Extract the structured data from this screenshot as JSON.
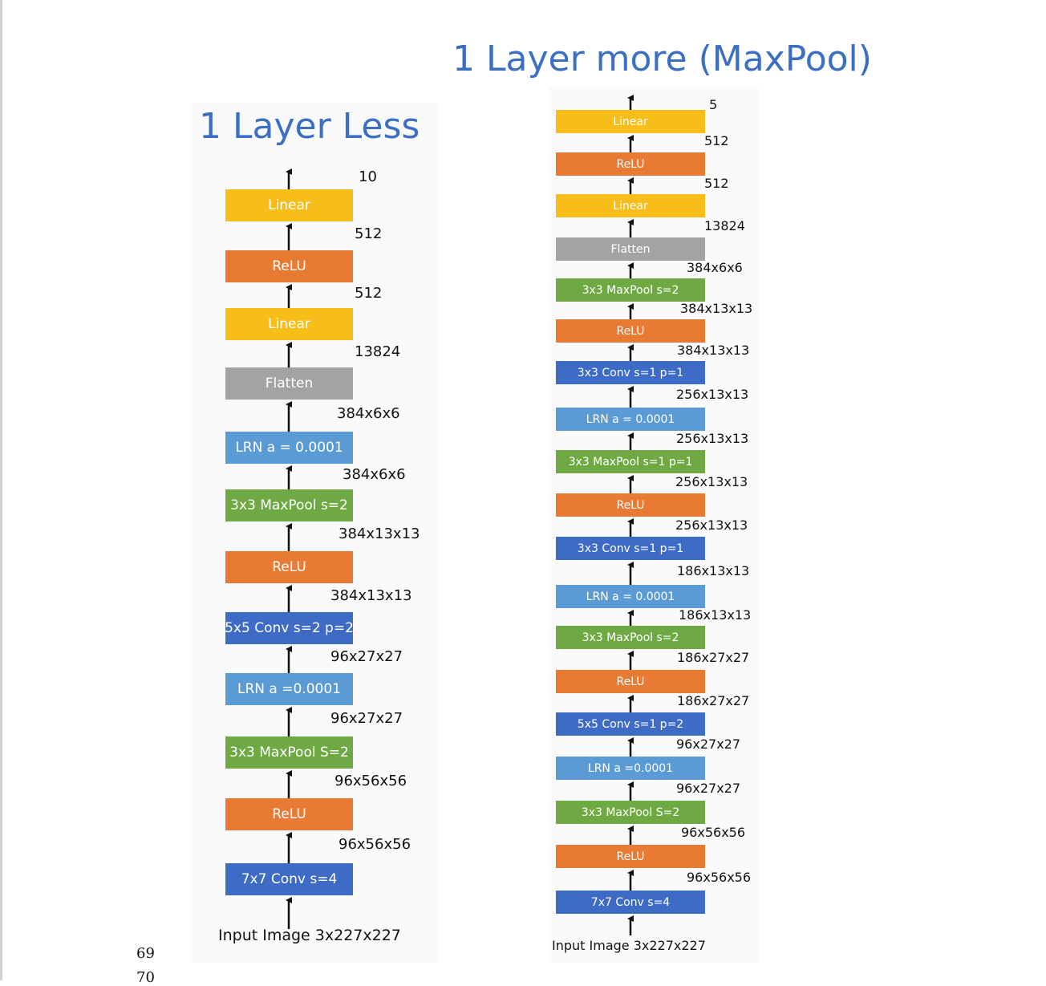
{
  "colors": {
    "title": "#3a6fc4",
    "linear": "#f7bd19",
    "relu": "#e87a33",
    "flatten": "#a3a3a3",
    "lrn": "#5b9bd5",
    "maxpool": "#6fa944",
    "conv": "#3d6bc6",
    "text": "#111111"
  },
  "left": {
    "title": "1 Layer Less",
    "output_label": "10",
    "input_label": "Input Image 3x227x227",
    "blocks": [
      {
        "label": "Linear",
        "kind": "linear",
        "out_label": "512"
      },
      {
        "label": "ReLU",
        "kind": "relu",
        "out_label": "512"
      },
      {
        "label": "Linear",
        "kind": "linear",
        "out_label": "13824"
      },
      {
        "label": "Flatten",
        "kind": "flatten",
        "out_label": "384x6x6"
      },
      {
        "label": "LRN a = 0.0001",
        "kind": "lrn",
        "out_label": "384x6x6"
      },
      {
        "label": "3x3 MaxPool s=2",
        "kind": "maxpool",
        "out_label": "384x13x13"
      },
      {
        "label": "ReLU",
        "kind": "relu",
        "out_label": "384x13x13"
      },
      {
        "label": "5x5 Conv s=2 p=2",
        "kind": "conv",
        "out_label": "96x27x27"
      },
      {
        "label": "LRN a =0.0001",
        "kind": "lrn",
        "out_label": "96x27x27"
      },
      {
        "label": "3x3 MaxPool S=2",
        "kind": "maxpool",
        "out_label": "96x56x56"
      },
      {
        "label": "ReLU",
        "kind": "relu",
        "out_label": "96x56x56"
      },
      {
        "label": "7x7 Conv s=4",
        "kind": "conv",
        "out_label": ""
      }
    ]
  },
  "right": {
    "title": "1 Layer more (MaxPool)",
    "output_label": "5",
    "input_label": "Input Image 3x227x227",
    "blocks": [
      {
        "label": "Linear",
        "kind": "linear",
        "out_label": "512"
      },
      {
        "label": "ReLU",
        "kind": "relu",
        "out_label": "512"
      },
      {
        "label": "Linear",
        "kind": "linear",
        "out_label": "13824"
      },
      {
        "label": "Flatten",
        "kind": "flatten",
        "out_label": "384x6x6"
      },
      {
        "label": "3x3 MaxPool s=2",
        "kind": "maxpool",
        "out_label": "384x13x13"
      },
      {
        "label": "ReLU",
        "kind": "relu",
        "out_label": "384x13x13"
      },
      {
        "label": "3x3 Conv s=1 p=1",
        "kind": "conv",
        "out_label": "256x13x13"
      },
      {
        "label": "LRN a = 0.0001",
        "kind": "lrn",
        "out_label": "256x13x13"
      },
      {
        "label": "3x3 MaxPool s=1 p=1",
        "kind": "maxpool",
        "out_label": "256x13x13"
      },
      {
        "label": "ReLU",
        "kind": "relu",
        "out_label": "256x13x13"
      },
      {
        "label": "3x3 Conv s=1 p=1",
        "kind": "conv",
        "out_label": "186x13x13"
      },
      {
        "label": "LRN a = 0.0001",
        "kind": "lrn",
        "out_label": "186x13x13"
      },
      {
        "label": "3x3 MaxPool s=2",
        "kind": "maxpool",
        "out_label": "186x27x27"
      },
      {
        "label": "ReLU",
        "kind": "relu",
        "out_label": "186x27x27"
      },
      {
        "label": "5x5 Conv s=1 p=2",
        "kind": "conv",
        "out_label": "96x27x27"
      },
      {
        "label": "LRN a =0.0001",
        "kind": "lrn",
        "out_label": "96x27x27"
      },
      {
        "label": "3x3 MaxPool S=2",
        "kind": "maxpool",
        "out_label": "96x56x56"
      },
      {
        "label": "ReLU",
        "kind": "relu",
        "out_label": "96x56x56"
      },
      {
        "label": "7x7 Conv s=4",
        "kind": "conv",
        "out_label": ""
      }
    ]
  },
  "page_numbers": [
    "69",
    "70"
  ]
}
